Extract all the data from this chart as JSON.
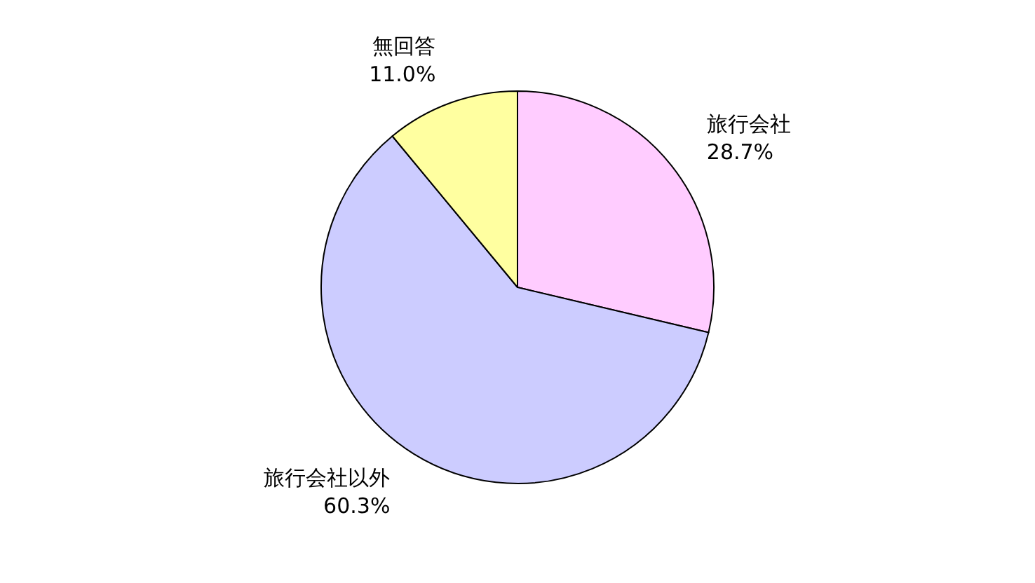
{
  "chart_data": {
    "type": "pie",
    "categories": [
      "旅行会社",
      "旅行会社以外",
      "無回答"
    ],
    "values": [
      28.7,
      60.3,
      11.0
    ],
    "colors": [
      "#ffccff",
      "#ccccff",
      "#ffffa0"
    ],
    "value_labels": [
      "28.7%",
      "60.3%",
      "11.0%"
    ]
  }
}
